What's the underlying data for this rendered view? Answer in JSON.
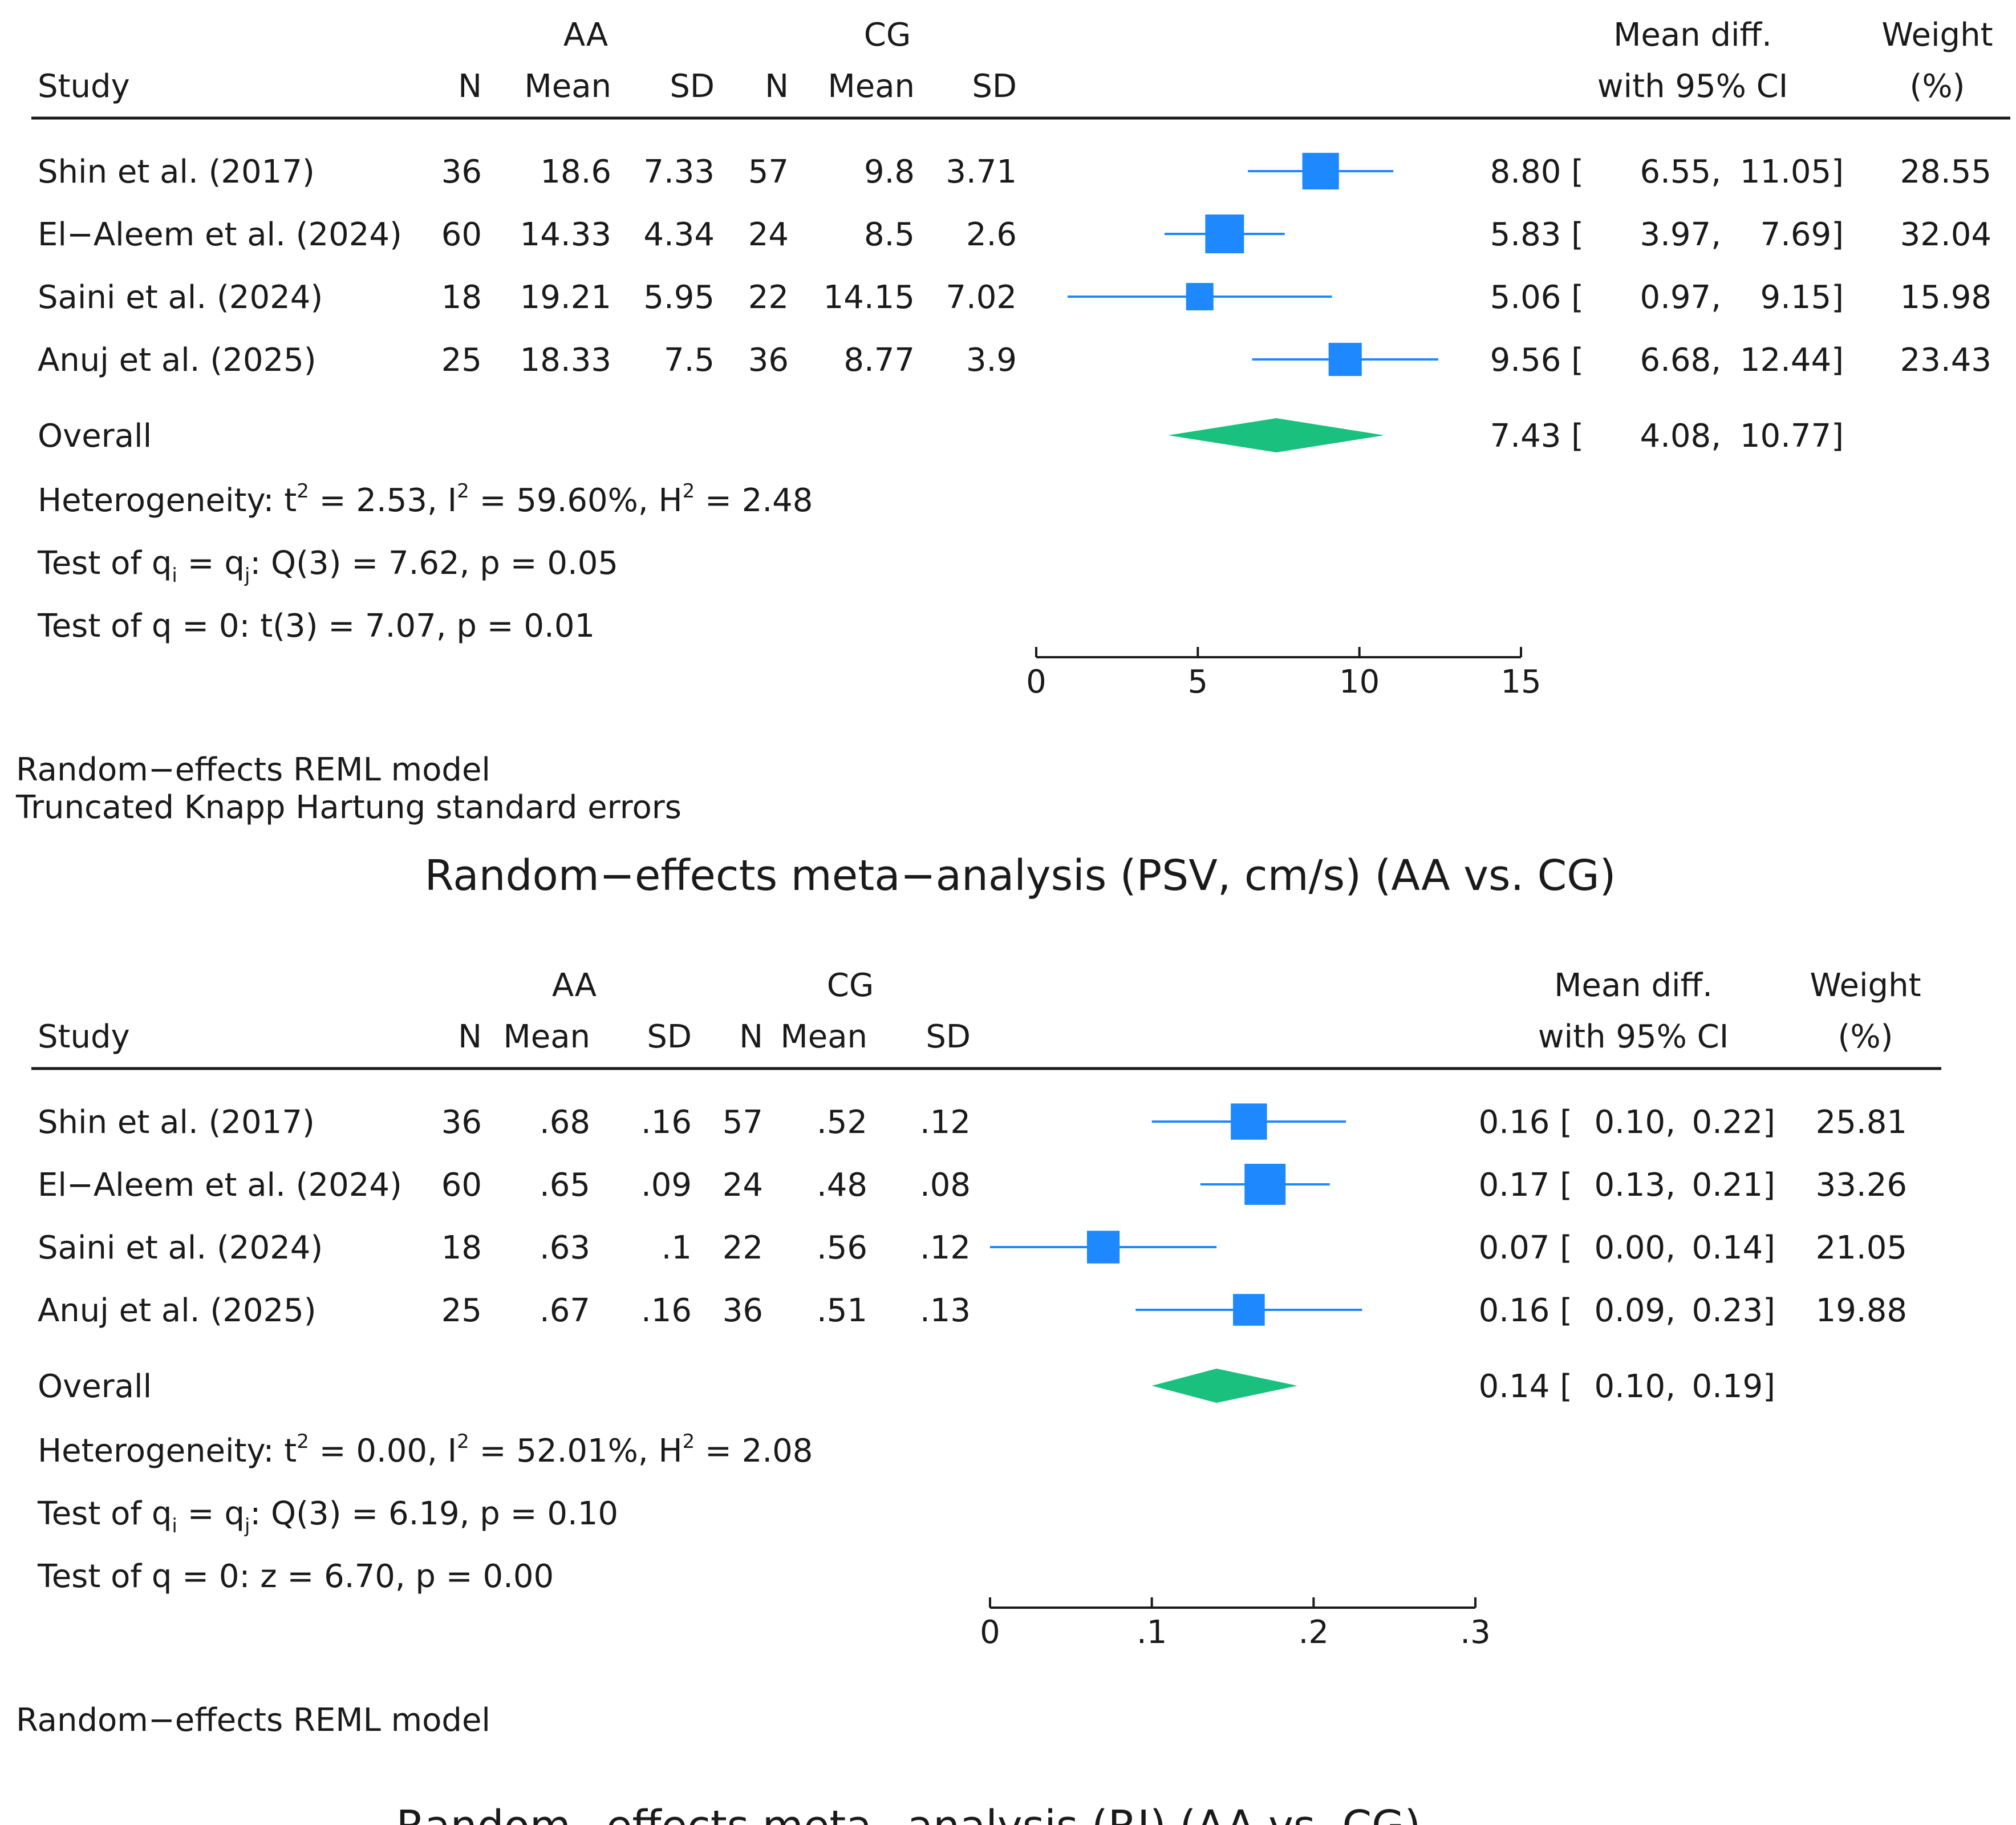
{
  "colors": {
    "marker": "#1e88ff",
    "ci_line": "#1e88ff",
    "diamond": "#19c07e",
    "rule": "#1a1a1a",
    "text": "#1a1a1a"
  },
  "chart_data": [
    {
      "type": "forest",
      "title": "Random−effects meta−analysis (PSV, cm/s) (AA vs. CG)",
      "headers": {
        "study": "Study",
        "group1": "AA",
        "group2": "CG",
        "n": "N",
        "mean": "Mean",
        "sd": "SD",
        "effect_line1": "Mean diff.",
        "effect_line2": "with 95% CI",
        "weight_line1": "Weight",
        "weight_line2": "(%)"
      },
      "studies": [
        {
          "label": "Shin et al. (2017)",
          "n1": "36",
          "mean1": "18.6",
          "sd1": "7.33",
          "n2": "57",
          "mean2": "9.8",
          "sd2": "3.71",
          "md": 8.8,
          "lo": 6.55,
          "hi": 11.05,
          "md_text": "8.80 [",
          "lo_text": "6.55,",
          "hi_text": "11.05]",
          "weight": 28.55,
          "weight_text": "28.55"
        },
        {
          "label": "El−Aleem et al. (2024)",
          "n1": "60",
          "mean1": "14.33",
          "sd1": "4.34",
          "n2": "24",
          "mean2": "8.5",
          "sd2": "2.6",
          "md": 5.83,
          "lo": 3.97,
          "hi": 7.69,
          "md_text": "5.83 [",
          "lo_text": "3.97,",
          "hi_text": "7.69]",
          "weight": 32.04,
          "weight_text": "32.04"
        },
        {
          "label": "Saini et al. (2024)",
          "n1": "18",
          "mean1": "19.21",
          "sd1": "5.95",
          "n2": "22",
          "mean2": "14.15",
          "sd2": "7.02",
          "md": 5.06,
          "lo": 0.97,
          "hi": 9.15,
          "md_text": "5.06 [",
          "lo_text": "0.97,",
          "hi_text": "9.15]",
          "weight": 15.98,
          "weight_text": "15.98"
        },
        {
          "label": "Anuj et al. (2025)",
          "n1": "25",
          "mean1": "18.33",
          "sd1": "7.5",
          "n2": "36",
          "mean2": "8.77",
          "sd2": "3.9",
          "md": 9.56,
          "lo": 6.68,
          "hi": 12.44,
          "md_text": "9.56 [",
          "lo_text": "6.68,",
          "hi_text": "12.44]",
          "weight": 23.43,
          "weight_text": "23.43"
        }
      ],
      "overall": {
        "label": "Overall",
        "md": 7.43,
        "lo": 4.08,
        "hi": 10.77,
        "md_text": "7.43 [",
        "lo_text": "4.08,",
        "hi_text": "10.77]"
      },
      "heterogeneity": {
        "prefix": "Heterogeneity: t",
        "tau2": "= 2.53, I",
        "i2": "= 59.60%, H",
        "h2": "= 2.48",
        "sup": "2"
      },
      "test_qiqj": {
        "a": "Test of q",
        "sub_i": "i",
        "b": " = q",
        "sub_j": "j",
        "c": ": Q(3) = 7.62, p = 0.05"
      },
      "test_q0": "Test of q = 0: t(3) = 7.07, p = 0.01",
      "xaxis": {
        "min": 0,
        "max": 15,
        "ticks": [
          0,
          5,
          10,
          15
        ],
        "tick_labels": [
          "0",
          "5",
          "10",
          "15"
        ]
      },
      "notes": [
        "Random−effects REML model",
        "Truncated Knapp  Hartung standard errors"
      ]
    },
    {
      "type": "forest",
      "title": "Random−effects meta−analysis (RI) (AA vs. CG)",
      "headers": {
        "study": "Study",
        "group1": "AA",
        "group2": "CG",
        "n": "N",
        "mean": "Mean",
        "sd": "SD",
        "effect_line1": "Mean diff.",
        "effect_line2": "with 95% CI",
        "weight_line1": "Weight",
        "weight_line2": "(%)"
      },
      "studies": [
        {
          "label": "Shin et al. (2017)",
          "n1": "36",
          "mean1": ".68",
          "sd1": ".16",
          "n2": "57",
          "mean2": ".52",
          "sd2": ".12",
          "md": 0.16,
          "lo": 0.1,
          "hi": 0.22,
          "md_text": "0.16 [",
          "lo_text": "0.10,",
          "hi_text": "0.22]",
          "weight": 25.81,
          "weight_text": "25.81"
        },
        {
          "label": "El−Aleem et al. (2024)",
          "n1": "60",
          "mean1": ".65",
          "sd1": ".09",
          "n2": "24",
          "mean2": ".48",
          "sd2": ".08",
          "md": 0.17,
          "lo": 0.13,
          "hi": 0.21,
          "md_text": "0.17 [",
          "lo_text": "0.13,",
          "hi_text": "0.21]",
          "weight": 33.26,
          "weight_text": "33.26"
        },
        {
          "label": "Saini et al. (2024)",
          "n1": "18",
          "mean1": ".63",
          "sd1": ".1",
          "n2": "22",
          "mean2": ".56",
          "sd2": ".12",
          "md": 0.07,
          "lo": 0.0,
          "hi": 0.14,
          "md_text": "0.07 [",
          "lo_text": "0.00,",
          "hi_text": "0.14]",
          "weight": 21.05,
          "weight_text": "21.05"
        },
        {
          "label": "Anuj et al. (2025)",
          "n1": "25",
          "mean1": ".67",
          "sd1": ".16",
          "n2": "36",
          "mean2": ".51",
          "sd2": ".13",
          "md": 0.16,
          "lo": 0.09,
          "hi": 0.23,
          "md_text": "0.16 [",
          "lo_text": "0.09,",
          "hi_text": "0.23]",
          "weight": 19.88,
          "weight_text": "19.88"
        }
      ],
      "overall": {
        "label": "Overall",
        "md": 0.14,
        "lo": 0.1,
        "hi": 0.19,
        "md_text": "0.14 [",
        "lo_text": "0.10,",
        "hi_text": "0.19]"
      },
      "heterogeneity": {
        "prefix": "Heterogeneity: t",
        "tau2": "= 0.00, I",
        "i2": "= 52.01%, H",
        "h2": "= 2.08",
        "sup": "2"
      },
      "test_qiqj": {
        "a": "Test of q",
        "sub_i": "i",
        "b": " = q",
        "sub_j": "j",
        "c": ": Q(3) = 6.19, p = 0.10"
      },
      "test_q0": "Test of q = 0: z = 6.70, p = 0.00",
      "xaxis": {
        "min": 0,
        "max": 0.3,
        "ticks": [
          0,
          0.1,
          0.2,
          0.3
        ],
        "tick_labels": [
          "0",
          ".1",
          ".2",
          ".3"
        ]
      },
      "notes": [
        "Random−effects REML model"
      ]
    }
  ]
}
